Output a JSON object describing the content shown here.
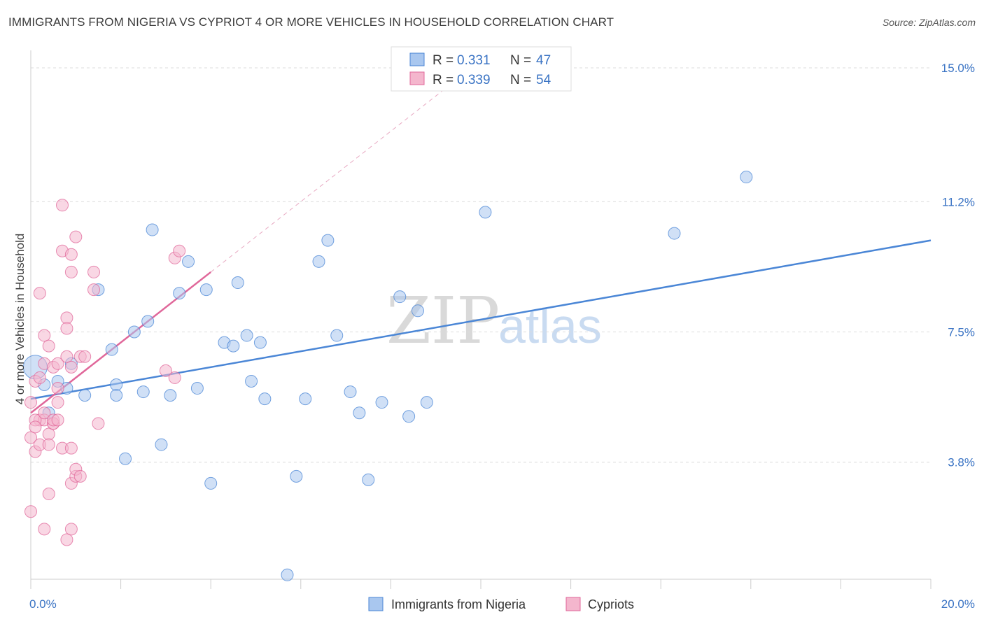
{
  "header": {
    "title": "IMMIGRANTS FROM NIGERIA VS CYPRIOT 4 OR MORE VEHICLES IN HOUSEHOLD CORRELATION CHART",
    "source": "Source: ZipAtlas.com"
  },
  "watermark": {
    "zip": "ZIP",
    "atlas": "atlas"
  },
  "colors": {
    "blue": "#4a86d6",
    "blue_fill": "#a9c7ef",
    "pink": "#e0679a",
    "pink_fill": "#f4b6cd"
  },
  "chart_data": {
    "type": "scatter",
    "title": "IMMIGRANTS FROM NIGERIA VS CYPRIOT 4 OR MORE VEHICLES IN HOUSEHOLD CORRELATION CHART",
    "xlabel": "",
    "ylabel": "4 or more Vehicles in Household",
    "xlim": [
      0,
      20
    ],
    "ylim": [
      0,
      15.7
    ],
    "y_ticks": [
      3.8,
      7.5,
      11.2,
      15.0
    ],
    "y_tick_labels": [
      "3.8%",
      "7.5%",
      "11.2%",
      "15.0%"
    ],
    "x_tick_labels": [
      "0.0%",
      "20.0%"
    ],
    "grid": true,
    "legend_position": "top-center",
    "legend": [
      {
        "r_label": "R =",
        "r_value": "0.331",
        "n_label": "N =",
        "n_value": "47"
      },
      {
        "r_label": "R =",
        "r_value": "0.339",
        "n_label": "N =",
        "n_value": "54"
      }
    ],
    "series": [
      {
        "name": "Immigrants from Nigeria",
        "color": "#4a86d6",
        "trend": {
          "x": [
            0.0,
            20.0
          ],
          "y": [
            5.6,
            10.1
          ]
        },
        "points": [
          [
            0.1,
            6.5
          ],
          [
            0.4,
            5.2
          ],
          [
            0.6,
            6.1
          ],
          [
            0.9,
            6.6
          ],
          [
            0.8,
            5.9
          ],
          [
            1.2,
            5.7
          ],
          [
            1.5,
            8.7
          ],
          [
            1.8,
            7.0
          ],
          [
            1.9,
            6.0
          ],
          [
            1.9,
            5.7
          ],
          [
            2.1,
            3.9
          ],
          [
            2.3,
            7.5
          ],
          [
            2.5,
            5.8
          ],
          [
            2.6,
            7.8
          ],
          [
            2.7,
            10.4
          ],
          [
            2.9,
            4.3
          ],
          [
            3.1,
            5.7
          ],
          [
            3.3,
            8.6
          ],
          [
            3.5,
            9.5
          ],
          [
            3.7,
            5.9
          ],
          [
            3.9,
            8.7
          ],
          [
            4.0,
            3.2
          ],
          [
            4.3,
            7.2
          ],
          [
            4.5,
            7.1
          ],
          [
            4.6,
            8.9
          ],
          [
            4.8,
            7.4
          ],
          [
            4.9,
            6.1
          ],
          [
            5.1,
            7.2
          ],
          [
            5.2,
            5.6
          ],
          [
            5.7,
            0.6
          ],
          [
            5.9,
            3.4
          ],
          [
            6.1,
            5.6
          ],
          [
            6.4,
            9.5
          ],
          [
            6.6,
            10.1
          ],
          [
            6.8,
            7.4
          ],
          [
            7.1,
            5.8
          ],
          [
            7.3,
            5.2
          ],
          [
            7.5,
            3.3
          ],
          [
            7.8,
            5.5
          ],
          [
            8.2,
            8.5
          ],
          [
            8.4,
            5.1
          ],
          [
            8.6,
            8.1
          ],
          [
            8.8,
            5.5
          ],
          [
            10.1,
            10.9
          ],
          [
            14.3,
            10.3
          ],
          [
            15.9,
            11.9
          ],
          [
            0.3,
            6.0
          ]
        ]
      },
      {
        "name": "Cypriots",
        "color": "#e0679a",
        "trend": {
          "x": [
            0.0,
            4.0
          ],
          "y": [
            5.2,
            9.2
          ],
          "dashed_to": [
            9.2,
            14.4
          ]
        },
        "points": [
          [
            0.0,
            4.5
          ],
          [
            0.0,
            5.5
          ],
          [
            0.0,
            2.4
          ],
          [
            0.1,
            6.1
          ],
          [
            0.1,
            4.1
          ],
          [
            0.2,
            5.0
          ],
          [
            0.2,
            4.3
          ],
          [
            0.2,
            8.6
          ],
          [
            0.3,
            5.0
          ],
          [
            0.3,
            7.4
          ],
          [
            0.3,
            6.6
          ],
          [
            0.3,
            1.9
          ],
          [
            0.4,
            7.1
          ],
          [
            0.4,
            4.6
          ],
          [
            0.4,
            4.3
          ],
          [
            0.4,
            2.9
          ],
          [
            0.5,
            4.9
          ],
          [
            0.5,
            6.5
          ],
          [
            0.5,
            4.9
          ],
          [
            0.6,
            5.9
          ],
          [
            0.6,
            5.5
          ],
          [
            0.6,
            6.6
          ],
          [
            0.7,
            4.2
          ],
          [
            0.7,
            9.8
          ],
          [
            0.8,
            7.9
          ],
          [
            0.7,
            11.1
          ],
          [
            0.8,
            1.6
          ],
          [
            0.8,
            7.6
          ],
          [
            0.8,
            6.8
          ],
          [
            0.9,
            9.7
          ],
          [
            0.9,
            9.2
          ],
          [
            0.9,
            1.9
          ],
          [
            0.9,
            4.2
          ],
          [
            0.9,
            3.2
          ],
          [
            0.9,
            6.5
          ],
          [
            1.0,
            3.4
          ],
          [
            1.0,
            3.6
          ],
          [
            1.1,
            6.8
          ],
          [
            1.1,
            3.4
          ],
          [
            1.0,
            10.2
          ],
          [
            1.2,
            6.8
          ],
          [
            1.4,
            9.2
          ],
          [
            1.4,
            8.7
          ],
          [
            1.5,
            4.9
          ],
          [
            3.0,
            6.4
          ],
          [
            3.2,
            6.2
          ],
          [
            3.2,
            9.6
          ],
          [
            3.3,
            9.8
          ],
          [
            0.2,
            6.2
          ],
          [
            0.1,
            5.0
          ],
          [
            0.3,
            5.2
          ],
          [
            0.5,
            5.0
          ],
          [
            0.6,
            5.0
          ],
          [
            0.1,
            4.8
          ]
        ]
      }
    ]
  }
}
